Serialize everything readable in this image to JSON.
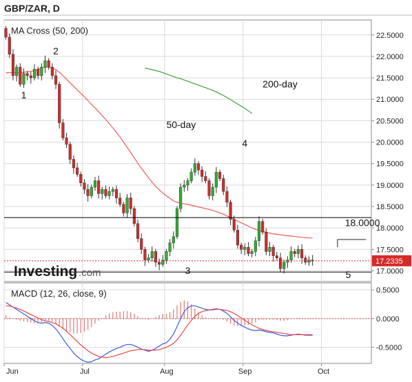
{
  "header": {
    "title": "GBP/ZAR, D"
  },
  "watermark": {
    "brand": "Investing",
    "suffix": ".com"
  },
  "colors": {
    "up": "#2db12d",
    "down": "#d62a2a",
    "ma50": "#f05a5a",
    "ma200": "#3f9e3f",
    "macd": "#3b5bdb",
    "signal": "#ee4444",
    "grid": "#d8d8d8",
    "hline": "#000000",
    "price_tag": "#d62a2a"
  },
  "chart_data": [
    {
      "type": "candlestick",
      "legend": "MA Cross (50, 200)",
      "x_ticks": [
        "Jun",
        "Jul",
        "Aug",
        "Sep",
        "Oct"
      ],
      "x_tick_index": [
        0,
        22,
        45,
        67,
        89
      ],
      "n_bars": 103,
      "ylim": [
        16.75,
        22.85
      ],
      "y_ticks": [
        "22.5000",
        "22.0000",
        "21.5000",
        "21.0000",
        "20.5000",
        "20.0000",
        "19.5000",
        "19.0000",
        "18.5000",
        "18.0000",
        "17.5000",
        "17.0000"
      ],
      "last_price": "17.2335",
      "horizontal_lines": [
        18.24,
        16.97
      ],
      "wave_labels": [
        {
          "text": "1",
          "bar": 5,
          "price": 21.02
        },
        {
          "text": "2",
          "bar": 14,
          "price": 22.05
        },
        {
          "text": "3",
          "bar": 51,
          "price": 16.93
        },
        {
          "text": "4",
          "bar": 67,
          "price": 19.9
        },
        {
          "text": "5",
          "bar": 96,
          "price": 16.83
        }
      ],
      "ma_labels": [
        {
          "text": "50-day",
          "bar": 45,
          "price": 20.33
        },
        {
          "text": "200-day",
          "bar": 72,
          "price": 21.28
        }
      ],
      "target_label": {
        "text": "18.0000",
        "bar": 100,
        "price": 18.04
      },
      "close": [
        22.45,
        22.05,
        21.55,
        21.75,
        21.35,
        21.6,
        21.55,
        21.5,
        21.7,
        21.55,
        21.75,
        21.9,
        21.75,
        21.55,
        21.35,
        20.45,
        20.1,
        19.95,
        19.6,
        19.4,
        19.25,
        19.05,
        18.9,
        18.75,
        18.95,
        19.1,
        18.8,
        18.9,
        18.75,
        18.85,
        18.9,
        18.7,
        18.55,
        18.35,
        18.7,
        18.45,
        18.1,
        17.75,
        17.5,
        17.25,
        17.3,
        17.45,
        17.2,
        17.15,
        17.25,
        17.45,
        17.65,
        17.8,
        18.45,
        18.95,
        19.0,
        19.1,
        19.3,
        19.5,
        19.35,
        19.2,
        19.1,
        18.75,
        18.95,
        19.3,
        19.15,
        18.85,
        18.6,
        18.2,
        17.95,
        17.6,
        17.5,
        17.55,
        17.4,
        17.45,
        17.7,
        18.15,
        17.9,
        17.45,
        17.55,
        17.35,
        17.3,
        17.05,
        17.2,
        17.25,
        17.45,
        17.4,
        17.5,
        17.3,
        17.2,
        17.25,
        17.23
      ],
      "ma50": [
        21.62,
        21.62,
        21.62,
        21.62,
        21.62,
        21.63,
        21.64,
        21.65,
        21.67,
        21.7,
        21.73,
        21.75,
        21.75,
        21.73,
        21.69,
        21.63,
        21.55,
        21.47,
        21.38,
        21.3,
        21.22,
        21.14,
        21.06,
        20.97,
        20.88,
        20.8,
        20.71,
        20.62,
        20.53,
        20.43,
        20.33,
        20.23,
        20.12,
        20.0,
        19.88,
        19.76,
        19.63,
        19.51,
        19.39,
        19.28,
        19.17,
        19.07,
        18.97,
        18.89,
        18.81,
        18.75,
        18.69,
        18.63,
        18.6,
        18.58,
        18.56,
        18.55,
        18.53,
        18.51,
        18.49,
        18.47,
        18.45,
        18.43,
        18.41,
        18.38,
        18.35,
        18.32,
        18.28,
        18.24,
        18.2,
        18.16,
        18.12,
        18.08,
        18.04,
        18.0,
        17.97,
        17.94,
        17.92,
        17.9,
        17.88,
        17.86,
        17.85,
        17.84,
        17.83,
        17.82,
        17.81,
        17.8,
        17.79,
        17.78,
        17.77,
        17.77,
        17.76
      ],
      "ma200": [
        21.73,
        21.71,
        21.69,
        21.67,
        21.65,
        21.62,
        21.59,
        21.56,
        21.53,
        21.5,
        21.48,
        21.45,
        21.42,
        21.39,
        21.36,
        21.33,
        21.3,
        21.27,
        21.24,
        21.21,
        21.17,
        21.13,
        21.09,
        21.04,
        20.99,
        20.94,
        20.89,
        20.84,
        20.79,
        20.73,
        20.67
      ],
      "ma200_start_bar": 39
    },
    {
      "type": "macd",
      "legend": "MACD (12, 26, close, 9)",
      "ylim": [
        -0.78,
        0.62
      ],
      "y_ticks": [
        "0.5000",
        "0.0000",
        "-0.5000"
      ],
      "macd": [
        0.28,
        0.24,
        0.2,
        0.16,
        0.12,
        0.08,
        0.04,
        0.0,
        -0.04,
        -0.07,
        -0.08,
        -0.07,
        -0.08,
        -0.12,
        -0.18,
        -0.26,
        -0.35,
        -0.44,
        -0.52,
        -0.6,
        -0.66,
        -0.71,
        -0.74,
        -0.76,
        -0.75,
        -0.72,
        -0.7,
        -0.66,
        -0.62,
        -0.58,
        -0.55,
        -0.52,
        -0.5,
        -0.47,
        -0.45,
        -0.45,
        -0.47,
        -0.5,
        -0.53,
        -0.55,
        -0.57,
        -0.55,
        -0.52,
        -0.48,
        -0.44,
        -0.42,
        -0.36,
        -0.27,
        -0.14,
        0.0,
        0.12,
        0.19,
        0.22,
        0.22,
        0.2,
        0.18,
        0.16,
        0.15,
        0.16,
        0.17,
        0.16,
        0.13,
        0.09,
        0.03,
        -0.03,
        -0.08,
        -0.12,
        -0.15,
        -0.18,
        -0.2,
        -0.21,
        -0.2,
        -0.21,
        -0.23,
        -0.24,
        -0.25,
        -0.27,
        -0.29,
        -0.3,
        -0.3,
        -0.29,
        -0.28,
        -0.27,
        -0.28,
        -0.29,
        -0.29,
        -0.29
      ],
      "signal": [
        0.22,
        0.22,
        0.2,
        0.18,
        0.16,
        0.13,
        0.1,
        0.07,
        0.04,
        0.01,
        -0.02,
        -0.04,
        -0.05,
        -0.07,
        -0.09,
        -0.13,
        -0.17,
        -0.22,
        -0.28,
        -0.34,
        -0.4,
        -0.46,
        -0.51,
        -0.56,
        -0.6,
        -0.63,
        -0.66,
        -0.67,
        -0.68,
        -0.67,
        -0.66,
        -0.64,
        -0.62,
        -0.6,
        -0.58,
        -0.56,
        -0.55,
        -0.54,
        -0.54,
        -0.54,
        -0.55,
        -0.55,
        -0.55,
        -0.54,
        -0.52,
        -0.5,
        -0.47,
        -0.43,
        -0.37,
        -0.29,
        -0.2,
        -0.11,
        -0.03,
        0.04,
        0.09,
        0.12,
        0.14,
        0.15,
        0.15,
        0.16,
        0.16,
        0.15,
        0.14,
        0.12,
        0.09,
        0.05,
        0.01,
        -0.03,
        -0.07,
        -0.11,
        -0.14,
        -0.17,
        -0.19,
        -0.21,
        -0.22,
        -0.23,
        -0.24,
        -0.25,
        -0.26,
        -0.27,
        -0.28,
        -0.28,
        -0.28,
        -0.28,
        -0.28,
        -0.28,
        -0.28
      ]
    }
  ]
}
